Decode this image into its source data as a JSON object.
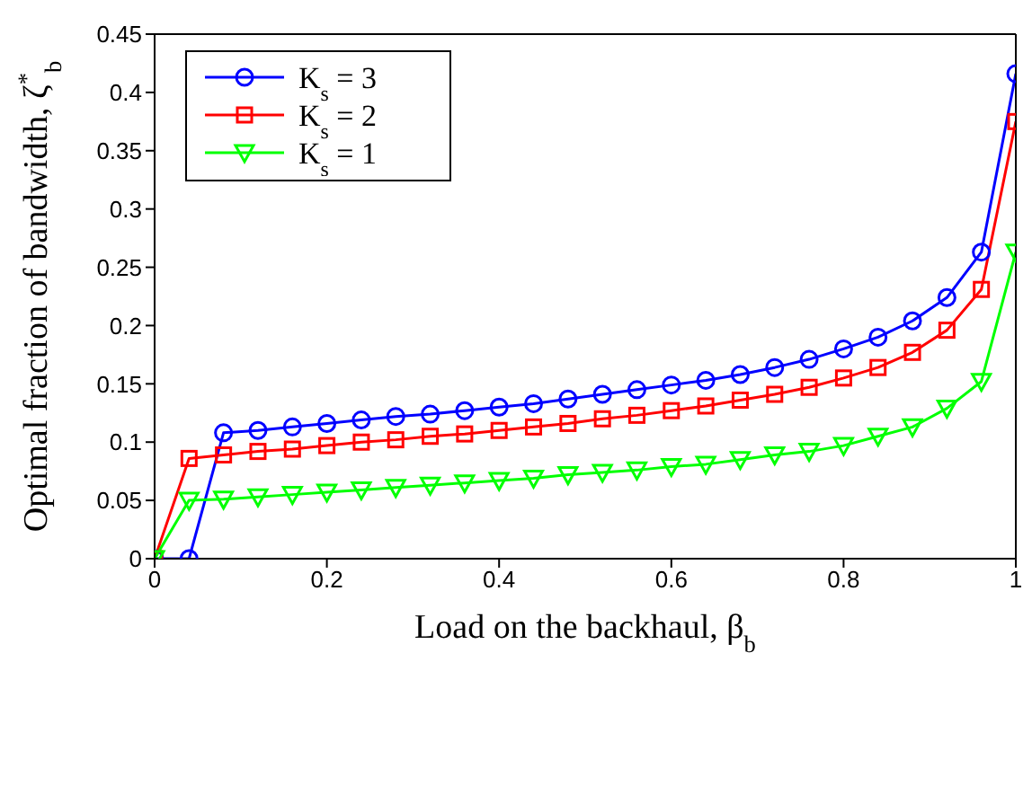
{
  "chart_data": {
    "type": "line",
    "xlabel": "Load on the backhaul, β$_{b}$",
    "ylabel": "Optimal fraction of bandwidth, ζ$^{*}$$_{b}$",
    "x": [
      0,
      0.04,
      0.08,
      0.12,
      0.16,
      0.2,
      0.24,
      0.28,
      0.32,
      0.36,
      0.4,
      0.44,
      0.48,
      0.52,
      0.56,
      0.6,
      0.64,
      0.68,
      0.72,
      0.76,
      0.8,
      0.84,
      0.88,
      0.92,
      0.96,
      1
    ],
    "series": [
      {
        "name": "K$_{s}$ = 3",
        "color": "#0000ff",
        "marker": "circle",
        "values": [
          0,
          0,
          0.108,
          0.11,
          0.113,
          0.116,
          0.119,
          0.122,
          0.124,
          0.127,
          0.13,
          0.133,
          0.137,
          0.141,
          0.145,
          0.149,
          0.153,
          0.158,
          0.164,
          0.171,
          0.18,
          0.19,
          0.204,
          0.224,
          0.263,
          0.416
        ]
      },
      {
        "name": "K$_{s}$ = 2",
        "color": "#ff0000",
        "marker": "square",
        "values": [
          0,
          0.086,
          0.089,
          0.092,
          0.094,
          0.097,
          0.1,
          0.102,
          0.105,
          0.107,
          0.11,
          0.113,
          0.116,
          0.12,
          0.123,
          0.127,
          0.131,
          0.136,
          0.141,
          0.147,
          0.155,
          0.164,
          0.177,
          0.196,
          0.231,
          0.375
        ]
      },
      {
        "name": "K$_{s}$ = 1",
        "color": "#00ff00",
        "marker": "triangle",
        "values": [
          0,
          0.05,
          0.051,
          0.053,
          0.055,
          0.057,
          0.059,
          0.061,
          0.063,
          0.065,
          0.067,
          0.069,
          0.072,
          0.074,
          0.076,
          0.079,
          0.081,
          0.085,
          0.089,
          0.092,
          0.097,
          0.105,
          0.113,
          0.129,
          0.152,
          0.263
        ]
      }
    ],
    "xlim": [
      0,
      1
    ],
    "xticks": [
      0,
      0.2,
      0.4,
      0.6,
      0.8,
      1
    ],
    "ylim": [
      0,
      0.45
    ],
    "yticks": [
      0,
      0.05,
      0.1,
      0.15,
      0.2,
      0.25,
      0.3,
      0.35,
      0.4,
      0.45
    ],
    "grid": false,
    "legend": "top left",
    "line_style": "solid"
  }
}
